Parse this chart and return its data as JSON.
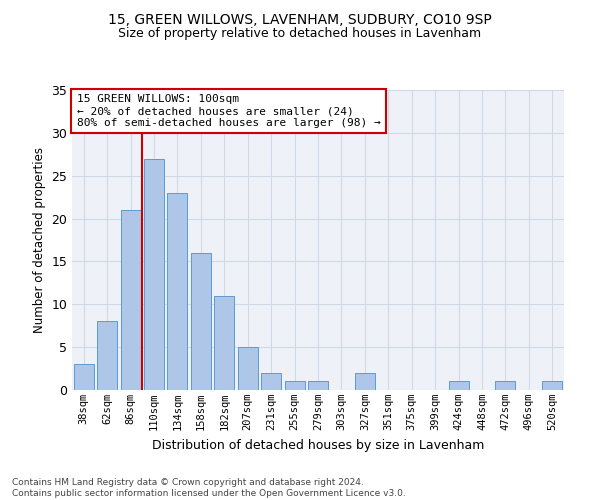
{
  "title1": "15, GREEN WILLOWS, LAVENHAM, SUDBURY, CO10 9SP",
  "title2": "Size of property relative to detached houses in Lavenham",
  "xlabel": "Distribution of detached houses by size in Lavenham",
  "ylabel": "Number of detached properties",
  "bar_labels": [
    "38sqm",
    "62sqm",
    "86sqm",
    "110sqm",
    "134sqm",
    "158sqm",
    "182sqm",
    "207sqm",
    "231sqm",
    "255sqm",
    "279sqm",
    "303sqm",
    "327sqm",
    "351sqm",
    "375sqm",
    "399sqm",
    "424sqm",
    "448sqm",
    "472sqm",
    "496sqm",
    "520sqm"
  ],
  "bar_values": [
    3,
    8,
    21,
    27,
    23,
    16,
    11,
    5,
    2,
    1,
    1,
    0,
    2,
    0,
    0,
    0,
    1,
    0,
    1,
    0,
    1
  ],
  "bar_color": "#aec6e8",
  "bar_edge_color": "#5b9bd5",
  "grid_color": "#d0d8e8",
  "annotation_text": "15 GREEN WILLOWS: 100sqm\n← 20% of detached houses are smaller (24)\n80% of semi-detached houses are larger (98) →",
  "annotation_box_color": "#ffffff",
  "annotation_box_edge": "#cc0000",
  "marker_line_color": "#cc0000",
  "ylim": [
    0,
    35
  ],
  "yticks": [
    0,
    5,
    10,
    15,
    20,
    25,
    30,
    35
  ],
  "footer": "Contains HM Land Registry data © Crown copyright and database right 2024.\nContains public sector information licensed under the Open Government Licence v3.0.",
  "bg_color": "#eef2f8"
}
